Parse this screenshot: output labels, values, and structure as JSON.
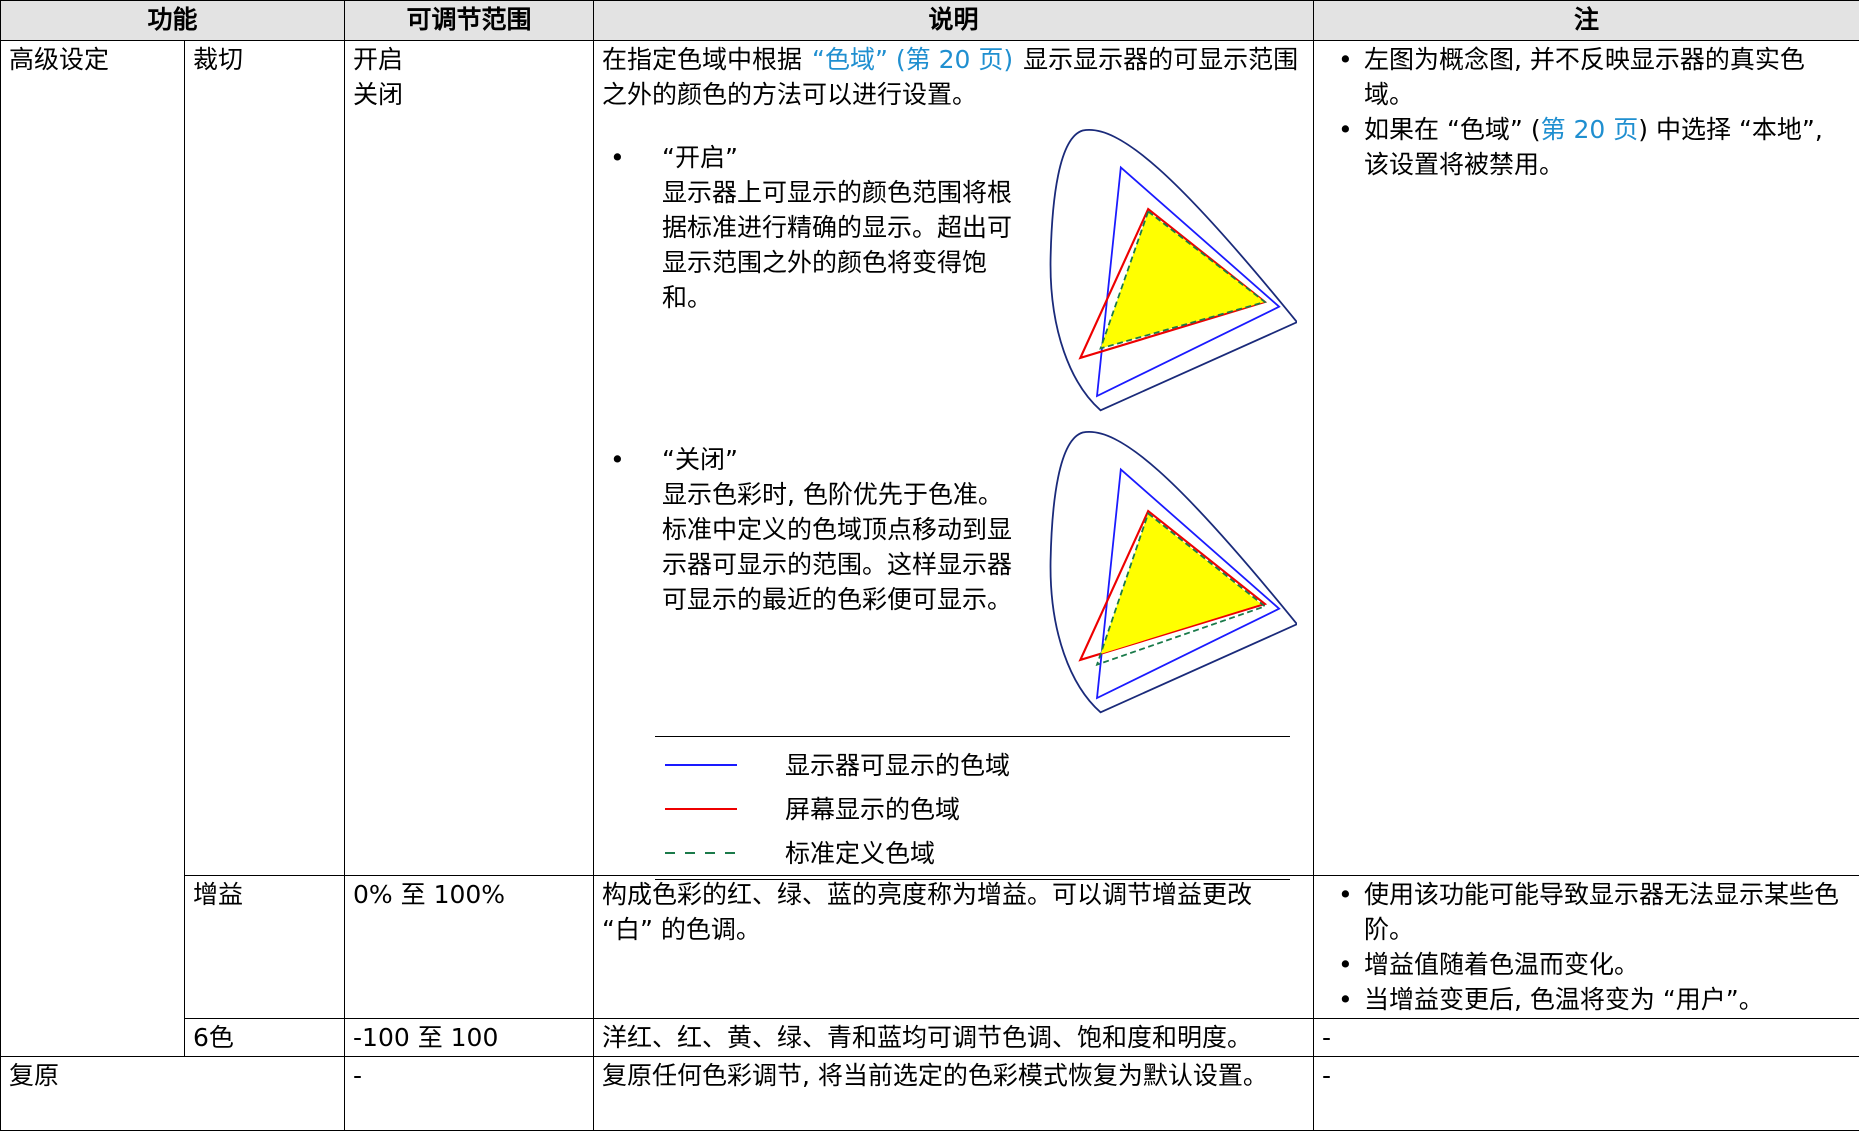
{
  "table": {
    "header": [
      "功能",
      "可调节范围",
      "说明",
      "注"
    ],
    "rows": [
      {
        "group": "高级设定",
        "function": "裁切",
        "range": [
          "开启",
          "关闭"
        ],
        "description": {
          "intro": [
            "在指定色域中根据",
            "“色域” (第 20 页)",
            "显示显示器的可显示范围之外的颜色的方法可以进行设置。"
          ],
          "options": [
            {
              "title": "“开启”",
              "text": "显示器上可显示的颜色范围将根据标准进行精确的显示。超出可显示范围之外的颜色将变得饱和。"
            },
            {
              "title": "“关闭”",
              "text": "显示色彩时, 色阶优先于色准。标准中定义的色域顶点移动到显示器可显示的范围。这样显示器可显示的最近的色彩便可显示。"
            }
          ],
          "legend": [
            "显示器可显示的色域",
            "屏幕显示的色域",
            "标准定义色域"
          ]
        },
        "notes": [
          "左图为概念图, 并不反映显示器的真实色域。",
          [
            "如果在 “色域” (",
            "第 20 页",
            ") 中选择 “本地”, 该设置将被禁用。"
          ]
        ]
      },
      {
        "function": "增益",
        "range": "0% 至 100%",
        "description": "构成色彩的红、绿、蓝的亮度称为增益。可以调节增益更改 “白” 的色调。",
        "notes": [
          "使用该功能可能导致显示器无法显示某些色阶。",
          "增益值随着色温而变化。",
          "当增益变更后, 色温将变为 “用户”。"
        ]
      },
      {
        "function": "6色",
        "range": "-100 至 100",
        "description": "洋红、红、黄、绿、青和蓝均可调节色调、饱和度和明度。",
        "notes": "-"
      },
      {
        "function": "复原",
        "range": "-",
        "description": "复原任何色彩调节, 将当前选定的色彩模式恢复为默认设置。",
        "notes": "-"
      }
    ]
  }
}
